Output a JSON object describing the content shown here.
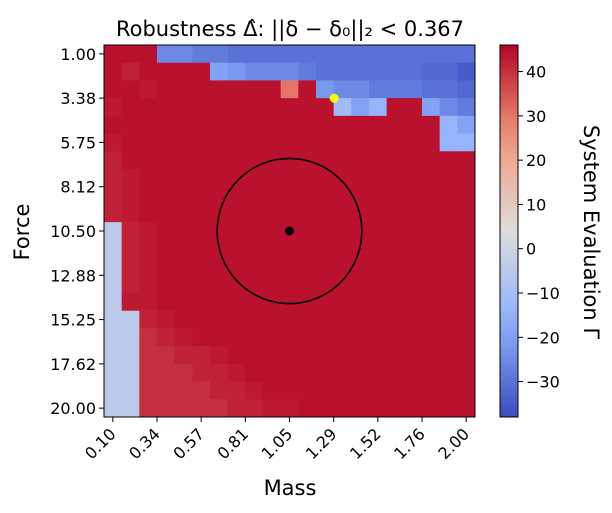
{
  "chart_data": {
    "type": "heatmap",
    "title": "Robustness Δ̂: ||δ − δ₀||₂ < 0.367",
    "xlabel": "Mass",
    "ylabel": "Force",
    "colorbar_label": "System Evaluation Γ",
    "x_ticks": [
      "0.10",
      "0.34",
      "0.57",
      "0.81",
      "1.05",
      "1.29",
      "1.52",
      "1.76",
      "2.00"
    ],
    "y_ticks": [
      "1.00",
      "3.38",
      "5.75",
      "8.12",
      "10.50",
      "12.88",
      "15.25",
      "17.62",
      "20.00"
    ],
    "colorbar_ticks": [
      "-30",
      "-20",
      "-10",
      "0",
      "10",
      "20",
      "30",
      "40"
    ],
    "x_range": [
      0.1,
      2.0
    ],
    "y_range": [
      1.0,
      20.0
    ],
    "color_range": [
      -38,
      46
    ],
    "colormap": "coolwarm",
    "grid_size": 21,
    "grid": [
      [
        44,
        44,
        44,
        -25,
        -25,
        -28,
        -28,
        -30,
        -30,
        -30,
        -30,
        -30,
        -30,
        -30,
        -30,
        -30,
        -30,
        -30,
        -30,
        -30,
        -30
      ],
      [
        44,
        42,
        44,
        44,
        44,
        44,
        -20,
        -22,
        -25,
        -25,
        -25,
        -28,
        -30,
        -30,
        -30,
        -30,
        -30,
        -30,
        -32,
        -32,
        -35
      ],
      [
        44,
        44,
        43,
        44,
        44,
        44,
        44,
        44,
        44,
        44,
        30,
        44,
        -22,
        -25,
        -25,
        -28,
        -28,
        -28,
        -30,
        -30,
        -32
      ],
      [
        43,
        44,
        44,
        44,
        44,
        44,
        44,
        44,
        44,
        44,
        44,
        44,
        44,
        -12,
        -20,
        -15,
        44,
        44,
        -20,
        -25,
        -28
      ],
      [
        44,
        44,
        44,
        44,
        44,
        44,
        44,
        44,
        44,
        44,
        44,
        44,
        44,
        44,
        44,
        44,
        44,
        44,
        44,
        -15,
        -20
      ],
      [
        43,
        44,
        44,
        44,
        44,
        44,
        44,
        44,
        44,
        44,
        44,
        44,
        44,
        44,
        44,
        44,
        44,
        44,
        44,
        -15,
        -15
      ],
      [
        42,
        44,
        44,
        44,
        44,
        44,
        44,
        44,
        44,
        44,
        44,
        44,
        44,
        44,
        44,
        44,
        44,
        44,
        44,
        44,
        44
      ],
      [
        42,
        43,
        44,
        44,
        44,
        44,
        44,
        44,
        44,
        44,
        44,
        44,
        44,
        44,
        44,
        44,
        44,
        44,
        44,
        44,
        44
      ],
      [
        42,
        43,
        44,
        44,
        44,
        44,
        44,
        44,
        44,
        44,
        44,
        44,
        44,
        44,
        44,
        44,
        44,
        44,
        44,
        44,
        44
      ],
      [
        42,
        43,
        44,
        44,
        44,
        44,
        44,
        44,
        44,
        44,
        44,
        44,
        44,
        44,
        44,
        44,
        44,
        44,
        44,
        44,
        44
      ],
      [
        -5,
        42,
        43,
        44,
        44,
        44,
        44,
        44,
        44,
        44,
        44,
        44,
        44,
        44,
        44,
        44,
        44,
        44,
        44,
        44,
        44
      ],
      [
        -5,
        42,
        43,
        44,
        44,
        44,
        44,
        44,
        44,
        44,
        44,
        44,
        44,
        44,
        44,
        44,
        44,
        44,
        44,
        44,
        44
      ],
      [
        -5,
        42,
        43,
        44,
        44,
        44,
        44,
        44,
        44,
        44,
        44,
        44,
        44,
        44,
        44,
        44,
        44,
        44,
        44,
        44,
        44
      ],
      [
        -5,
        42,
        43,
        44,
        44,
        44,
        44,
        44,
        44,
        44,
        44,
        44,
        44,
        44,
        44,
        44,
        44,
        44,
        44,
        44,
        44
      ],
      [
        -5,
        43,
        43,
        44,
        44,
        44,
        44,
        44,
        44,
        44,
        44,
        44,
        44,
        44,
        44,
        44,
        44,
        44,
        44,
        44,
        44
      ],
      [
        -5,
        -5,
        42,
        43,
        44,
        44,
        44,
        44,
        44,
        44,
        44,
        44,
        44,
        44,
        44,
        44,
        44,
        44,
        44,
        44,
        44
      ],
      [
        -5,
        -5,
        40,
        42,
        43,
        44,
        44,
        44,
        44,
        44,
        44,
        44,
        44,
        44,
        44,
        44,
        44,
        44,
        44,
        44,
        44
      ],
      [
        -5,
        -5,
        40,
        40,
        42,
        42,
        43,
        44,
        44,
        44,
        44,
        44,
        44,
        44,
        44,
        44,
        44,
        44,
        44,
        44,
        44
      ],
      [
        -5,
        -5,
        40,
        40,
        40,
        42,
        42,
        43,
        44,
        44,
        44,
        44,
        44,
        44,
        44,
        44,
        44,
        44,
        44,
        44,
        44
      ],
      [
        -5,
        -5,
        40,
        40,
        40,
        40,
        42,
        42,
        43,
        44,
        44,
        44,
        44,
        44,
        44,
        44,
        44,
        44,
        44,
        44,
        44
      ],
      [
        -5,
        -5,
        40,
        40,
        40,
        40,
        40,
        42,
        42,
        43,
        43,
        44,
        44,
        44,
        44,
        44,
        44,
        44,
        44,
        44,
        44
      ]
    ],
    "center_point": {
      "mass": 1.05,
      "force": 10.5,
      "color": "#000000"
    },
    "robustness_radius": 0.367,
    "worst_case_point": {
      "mass": 1.29,
      "force": 3.38,
      "color": "#ffff00"
    }
  }
}
